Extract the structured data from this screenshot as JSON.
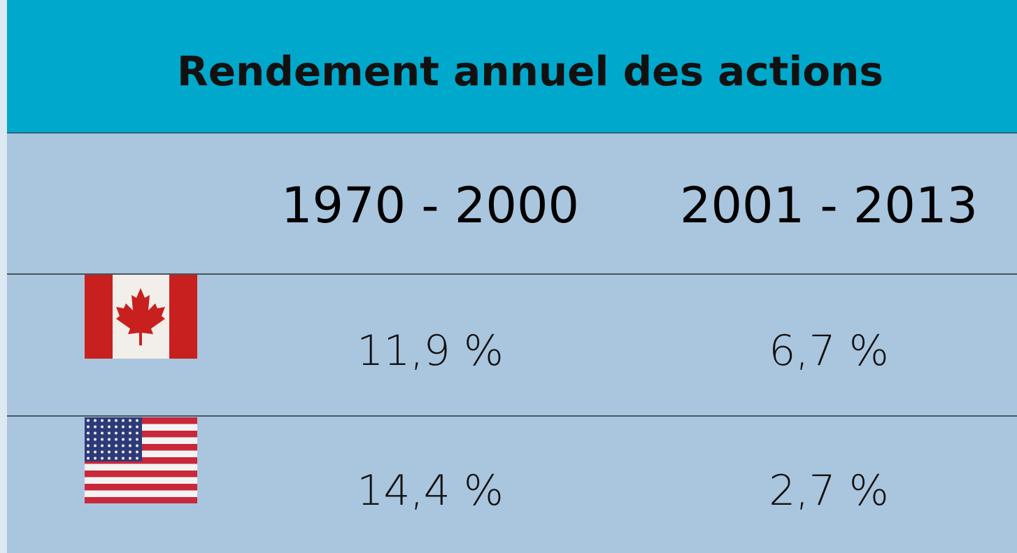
{
  "title": "Rendement annuel des actions",
  "table": {
    "columns": [
      "1970 - 2000",
      "2001 - 2013"
    ],
    "rows": [
      [
        "11,9 %",
        "6,7 %"
      ],
      [
        "14,4 %",
        "2,7 %"
      ]
    ]
  }
}
